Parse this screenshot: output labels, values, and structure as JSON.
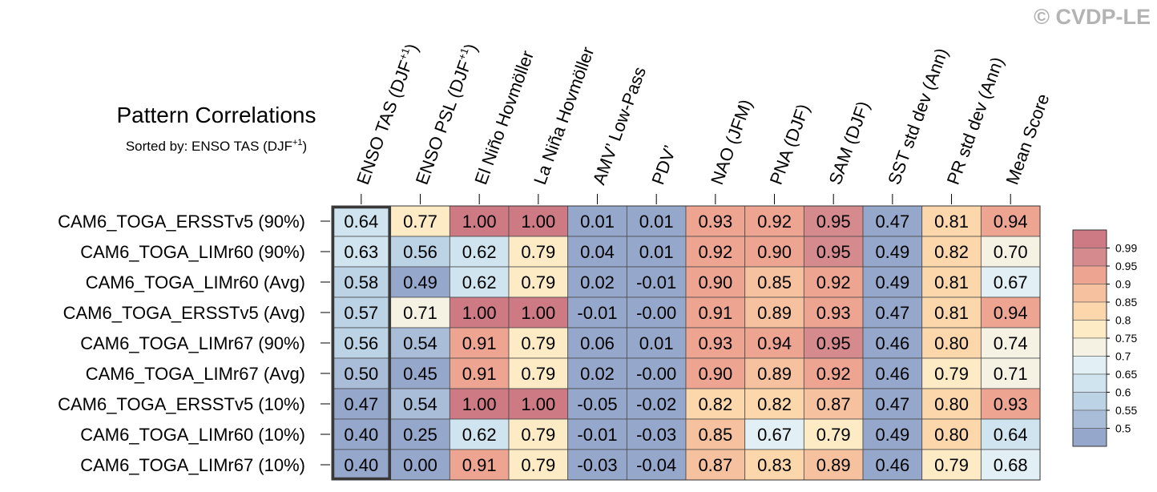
{
  "watermark": "© CVDP-LE",
  "chart_data": {
    "type": "heatmap",
    "title": "Pattern Correlations",
    "subtitle": {
      "base": "Sorted by: ENSO TAS (DJF",
      "superscript": "+1",
      "tail": ")"
    },
    "columns": [
      {
        "label": "ENSO TAS (DJF",
        "sup": "+1",
        "tail": ")"
      },
      {
        "label": "ENSO PSL (DJF",
        "sup": "+1",
        "tail": ")"
      },
      {
        "label": "El Niño Hovmöller"
      },
      {
        "label": "La Niña Hovmöller"
      },
      {
        "label": "AMV’ Low-Pass"
      },
      {
        "label": "PDV’"
      },
      {
        "label": "NAO (JFM)"
      },
      {
        "label": "PNA (DJF)"
      },
      {
        "label": "SAM (DJF)"
      },
      {
        "label": "SST std dev (Ann)"
      },
      {
        "label": "PR std dev (Ann)"
      },
      {
        "label": "Mean Score"
      }
    ],
    "rows": [
      "CAM6_TOGA_ERSSTv5 (90%)",
      "CAM6_TOGA_LIMr60 (90%)",
      "CAM6_TOGA_LIMr60 (Avg)",
      "CAM6_TOGA_ERSSTv5 (Avg)",
      "CAM6_TOGA_LIMr67 (90%)",
      "CAM6_TOGA_LIMr67 (Avg)",
      "CAM6_TOGA_ERSSTv5 (10%)",
      "CAM6_TOGA_LIMr60 (10%)",
      "CAM6_TOGA_LIMr67 (10%)"
    ],
    "values": [
      [
        "0.64",
        "0.77",
        "1.00",
        "1.00",
        "0.01",
        "0.01",
        "0.93",
        "0.92",
        "0.95",
        "0.47",
        "0.81",
        "0.94"
      ],
      [
        "0.63",
        "0.56",
        "0.62",
        "0.79",
        "0.04",
        "0.01",
        "0.92",
        "0.90",
        "0.95",
        "0.49",
        "0.82",
        "0.70"
      ],
      [
        "0.58",
        "0.49",
        "0.62",
        "0.79",
        "0.02",
        "-0.01",
        "0.90",
        "0.85",
        "0.92",
        "0.49",
        "0.81",
        "0.67"
      ],
      [
        "0.57",
        "0.71",
        "1.00",
        "1.00",
        "-0.01",
        "-0.00",
        "0.91",
        "0.89",
        "0.93",
        "0.47",
        "0.81",
        "0.94"
      ],
      [
        "0.56",
        "0.54",
        "0.91",
        "0.79",
        "0.06",
        "0.01",
        "0.93",
        "0.94",
        "0.95",
        "0.46",
        "0.80",
        "0.74"
      ],
      [
        "0.50",
        "0.45",
        "0.91",
        "0.79",
        "0.02",
        "-0.00",
        "0.90",
        "0.89",
        "0.92",
        "0.46",
        "0.79",
        "0.71"
      ],
      [
        "0.47",
        "0.54",
        "1.00",
        "1.00",
        "-0.05",
        "-0.02",
        "0.82",
        "0.82",
        "0.87",
        "0.47",
        "0.80",
        "0.93"
      ],
      [
        "0.40",
        "0.25",
        "0.62",
        "0.79",
        "-0.01",
        "-0.03",
        "0.85",
        "0.67",
        "0.79",
        "0.49",
        "0.80",
        "0.64"
      ],
      [
        "0.40",
        "0.00",
        "0.91",
        "0.79",
        "-0.03",
        "-0.04",
        "0.87",
        "0.83",
        "0.89",
        "0.46",
        "0.79",
        "0.68"
      ]
    ],
    "sorted_column": 0,
    "colorbar": {
      "labels": [
        "0.99",
        "0.95",
        "0.9",
        "0.85",
        "0.8",
        "0.75",
        "0.7",
        "0.65",
        "0.6",
        "0.55",
        "0.5"
      ],
      "thresholds": [
        0.5,
        0.55,
        0.6,
        0.65,
        0.7,
        0.75,
        0.8,
        0.85,
        0.9,
        0.95,
        0.99
      ],
      "colors": [
        "#95a8cc",
        "#a9bdd9",
        "#bcd3e5",
        "#cfe4ef",
        "#e2eff5",
        "#f6f2e3",
        "#fdebc6",
        "#fcd7ac",
        "#f6c19f",
        "#eda592",
        "#d58a8d",
        "#cd7a85"
      ]
    }
  }
}
